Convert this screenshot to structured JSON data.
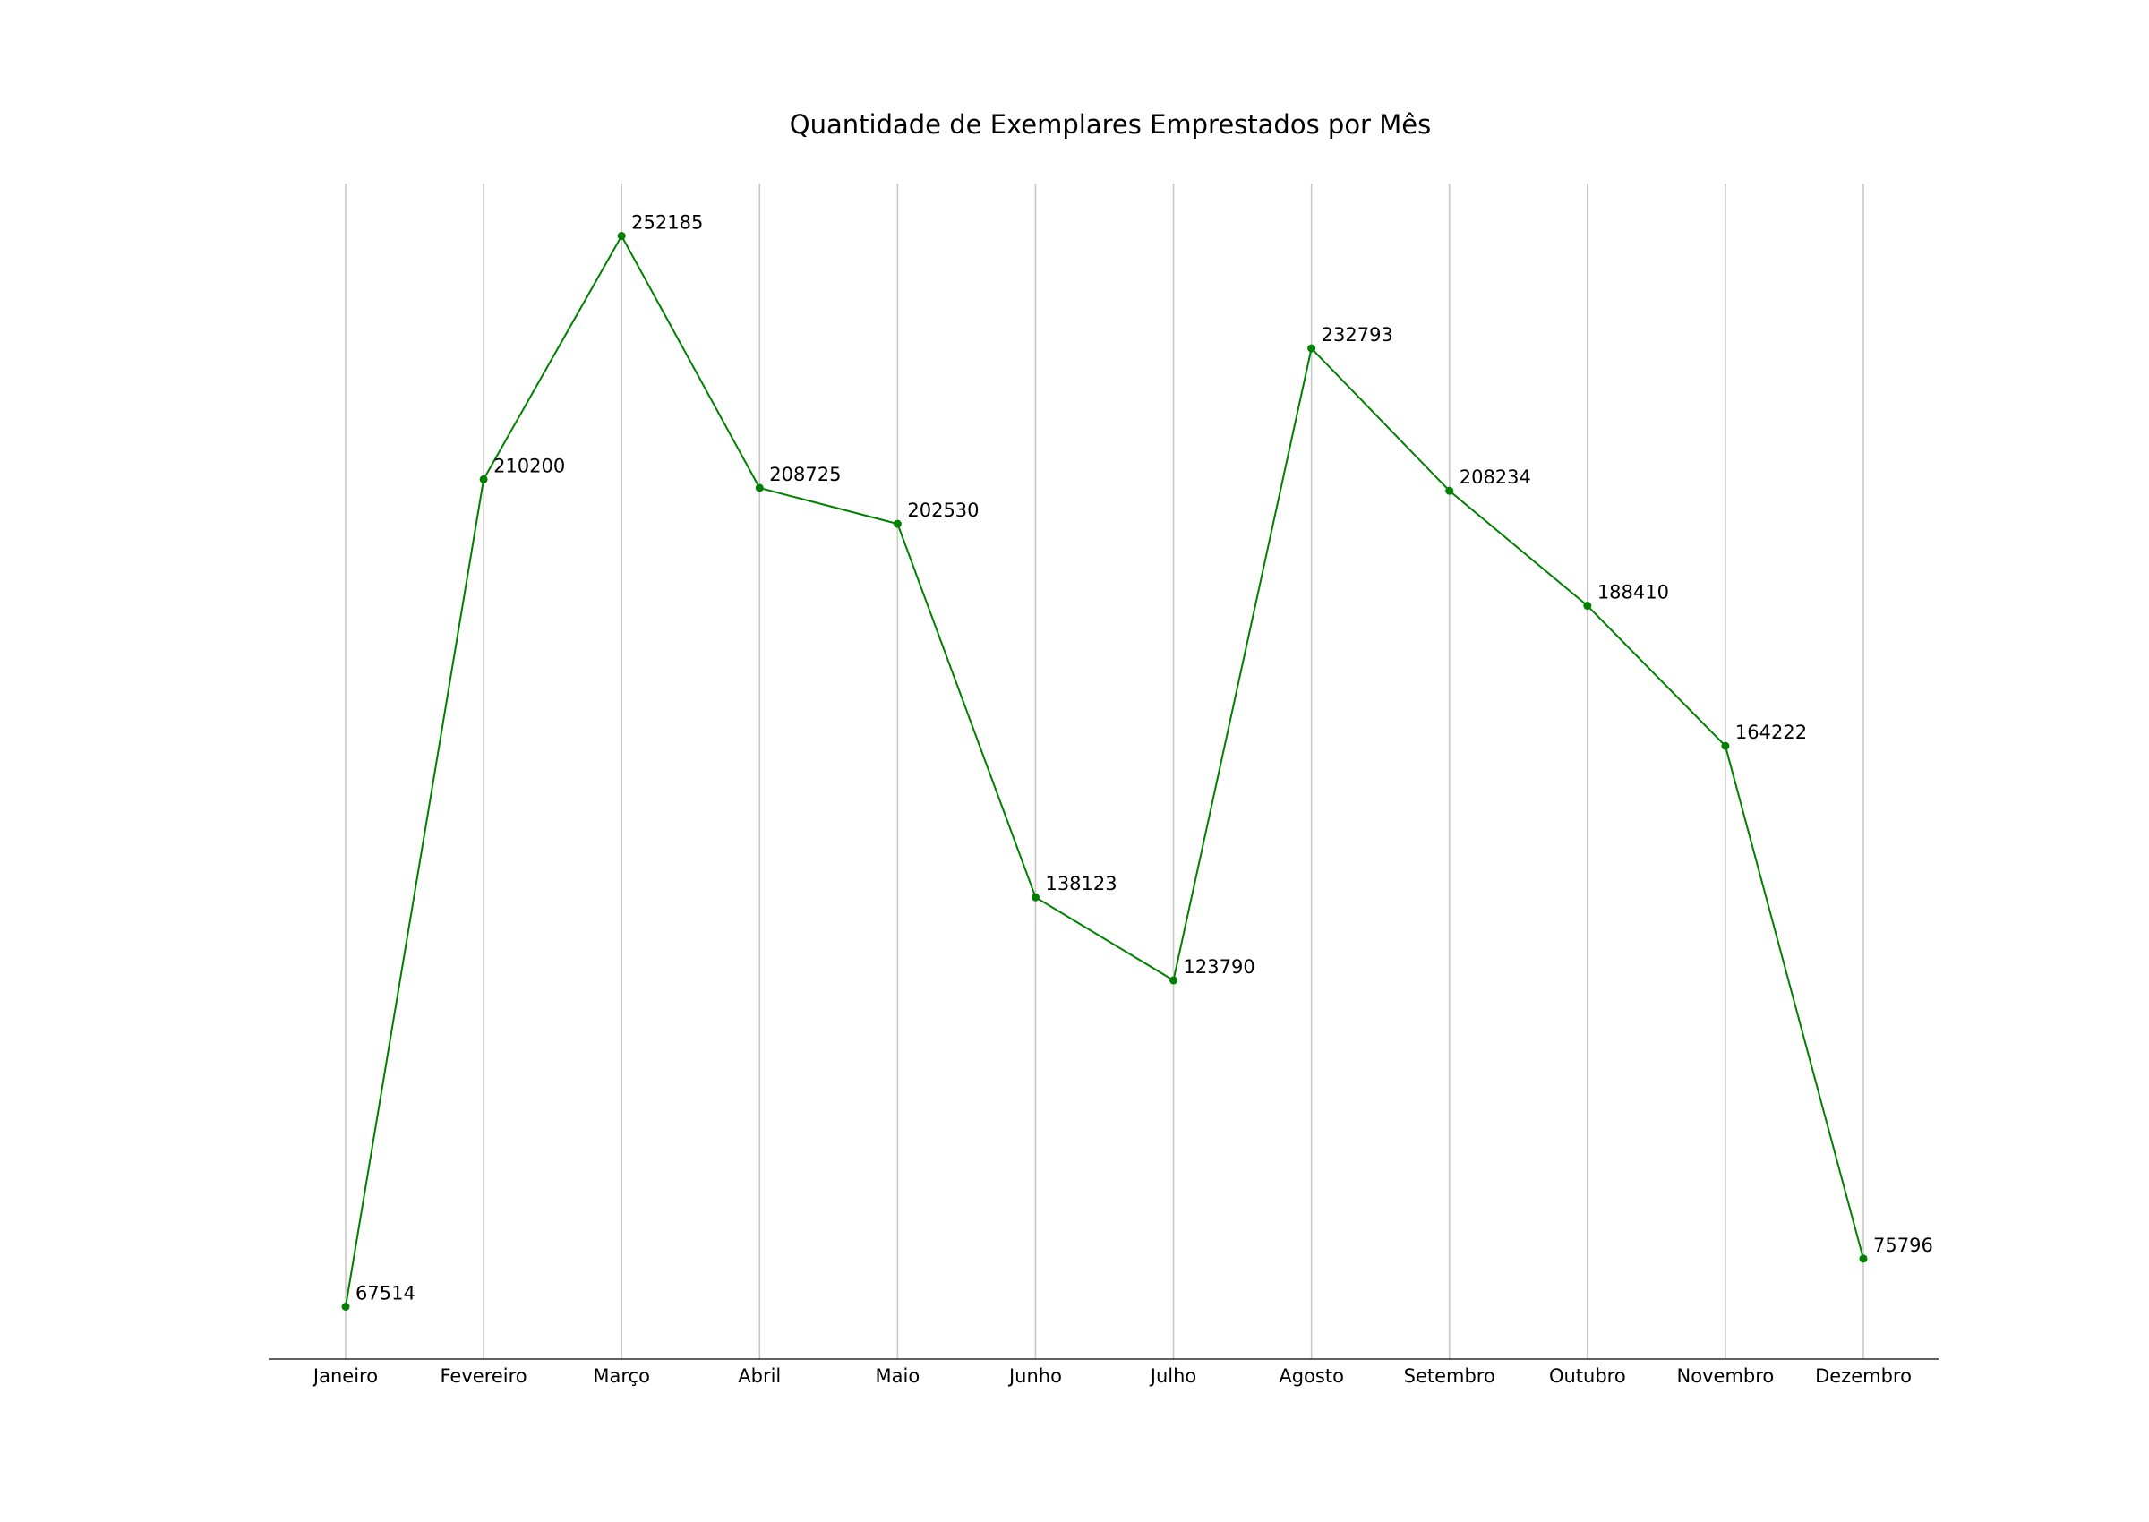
{
  "chart_data": {
    "type": "line",
    "title": "Quantidade de Exemplares Emprestados por Mês",
    "xlabel": "",
    "ylabel": "",
    "categories": [
      "Janeiro",
      "Fevereiro",
      "Março",
      "Abril",
      "Maio",
      "Junho",
      "Julho",
      "Agosto",
      "Setembro",
      "Outubro",
      "Novembro",
      "Dezembro"
    ],
    "series": [
      {
        "values": [
          67514,
          210200,
          252185,
          208725,
          202530,
          138123,
          123790,
          232793,
          208234,
          188410,
          164222,
          75796
        ],
        "color": "#008000"
      }
    ],
    "data_labels": [
      "67514",
      "210200",
      "252185",
      "208725",
      "202530",
      "138123",
      "123790",
      "232793",
      "208234",
      "188410",
      "164222",
      "75796"
    ],
    "ylim": [
      58479,
      261220
    ],
    "grid": "vertical",
    "legend": "none"
  }
}
